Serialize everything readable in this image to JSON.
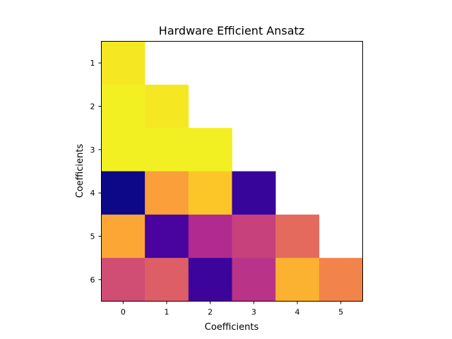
{
  "chart_data": {
    "type": "heatmap",
    "title": "Hardware Efficient Ansatz",
    "xlabel": "Coefficients",
    "ylabel": "Coefficients",
    "x_ticks": [
      "0",
      "1",
      "2",
      "3",
      "4",
      "5"
    ],
    "y_ticks": [
      "1",
      "2",
      "3",
      "4",
      "5",
      "6"
    ],
    "colormap": "plasma",
    "masked": "upper-triangle (white)",
    "grid": false,
    "colorbar": false,
    "values": [
      [
        0.96,
        null,
        null,
        null,
        null,
        null
      ],
      [
        0.98,
        0.96,
        null,
        null,
        null,
        null
      ],
      [
        0.98,
        0.98,
        0.98,
        null,
        null,
        null
      ],
      [
        0.0,
        0.78,
        0.88,
        0.08,
        null,
        null
      ],
      [
        0.8,
        0.12,
        0.4,
        0.48,
        0.62,
        null
      ],
      [
        0.52,
        0.58,
        0.09,
        0.43,
        0.83,
        0.7
      ]
    ]
  }
}
